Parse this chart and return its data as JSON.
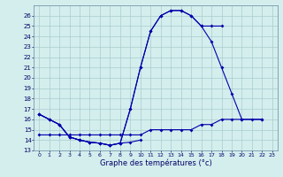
{
  "xlabel": "Graphe des températures (°c)",
  "background_color": "#d4eeee",
  "grid_color": "#aacccc",
  "line_color": "#0000aa",
  "ylim": [
    13,
    27
  ],
  "xlim": [
    -0.5,
    23.5
  ],
  "yticks": [
    13,
    14,
    15,
    16,
    17,
    18,
    19,
    20,
    21,
    22,
    23,
    24,
    25,
    26
  ],
  "xticks": [
    0,
    1,
    2,
    3,
    4,
    5,
    6,
    7,
    8,
    9,
    10,
    11,
    12,
    13,
    14,
    15,
    16,
    17,
    18,
    19,
    20,
    21,
    22,
    23
  ],
  "series": [
    {
      "x": [
        0,
        1,
        2,
        3,
        4,
        5,
        6,
        7,
        8,
        9,
        10
      ],
      "y": [
        16.5,
        16.0,
        15.5,
        14.3,
        14.0,
        13.8,
        13.7,
        13.5,
        13.7,
        13.8,
        14.0
      ]
    },
    {
      "x": [
        0,
        1,
        2,
        3,
        4,
        5,
        6,
        7,
        8,
        9,
        10,
        11,
        12,
        13,
        14,
        15,
        16,
        17,
        18
      ],
      "y": [
        16.5,
        16.0,
        15.5,
        14.3,
        14.0,
        13.8,
        13.7,
        13.5,
        13.7,
        17.0,
        21.0,
        24.5,
        26.0,
        26.5,
        26.5,
        26.0,
        25.0,
        25.0,
        25.0
      ]
    },
    {
      "x": [
        0,
        1,
        2,
        3,
        4,
        5,
        6,
        7,
        8,
        9,
        10,
        11,
        12,
        13,
        14,
        15,
        16,
        17,
        18,
        19,
        20,
        22
      ],
      "y": [
        16.5,
        16.0,
        15.5,
        14.3,
        14.0,
        13.8,
        13.7,
        13.5,
        13.7,
        17.0,
        21.0,
        24.5,
        26.0,
        26.5,
        26.5,
        26.0,
        25.0,
        23.5,
        21.0,
        18.5,
        16.0,
        16.0
      ]
    },
    {
      "x": [
        0,
        1,
        2,
        3,
        4,
        5,
        6,
        7,
        8,
        9,
        10,
        11,
        12,
        13,
        14,
        15,
        16,
        17,
        18,
        19,
        20,
        21,
        22
      ],
      "y": [
        14.5,
        14.5,
        14.5,
        14.5,
        14.5,
        14.5,
        14.5,
        14.5,
        14.5,
        14.5,
        14.5,
        15.0,
        15.0,
        15.0,
        15.0,
        15.0,
        15.5,
        15.5,
        16.0,
        16.0,
        16.0,
        16.0,
        16.0
      ]
    }
  ]
}
